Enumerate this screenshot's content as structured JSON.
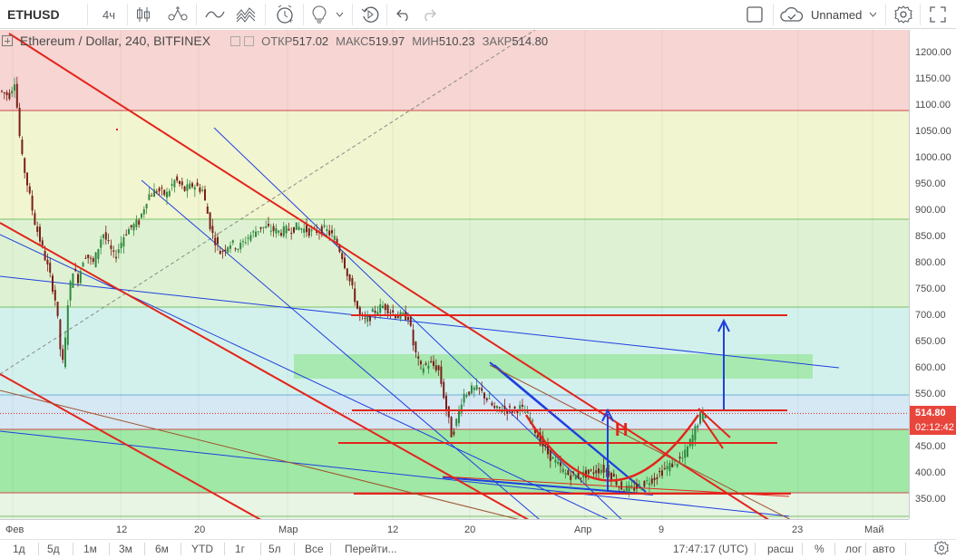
{
  "toolbar": {
    "symbol": "ETHUSD",
    "interval": "4ч",
    "account_name": "Unnamed"
  },
  "legend": {
    "title": "Ethereum / Dollar, 240, BITFINEX",
    "open_label": "ОТКР",
    "open_value": "517.02",
    "high_label": "МАКС",
    "high_value": "519.97",
    "low_label": "МИН",
    "low_value": "510.23",
    "close_label": "ЗАКР",
    "close_value": "514.80"
  },
  "price_axis": {
    "ticks": [
      "1200.00",
      "1150.00",
      "1100.00",
      "1050.00",
      "1000.00",
      "950.00",
      "900.00",
      "850.00",
      "800.00",
      "750.00",
      "700.00",
      "650.00",
      "600.00",
      "550.00",
      "500.00",
      "450.00",
      "400.00",
      "350.00"
    ],
    "last_price": "514.80",
    "countdown": "02:12:42",
    "last_price_color": "#e8453c"
  },
  "time_axis": {
    "labels": [
      "Фев",
      "12",
      "20",
      "Мар",
      "12",
      "20",
      "Апр",
      "9",
      "23",
      "Май"
    ]
  },
  "annotation": {
    "letter": "Н"
  },
  "bottom_bar": {
    "ranges": [
      "1д",
      "5д",
      "1м",
      "3м",
      "6м",
      "YTD",
      "1г",
      "5л",
      "Все"
    ],
    "goto_label": "Перейти...",
    "clock": "17:47:17 (UTC)",
    "scale_items": [
      "расш",
      "%",
      "лог",
      "авто"
    ]
  },
  "colors": {
    "zone_red": "#f6d5d2",
    "zone_yellow": "#f1f5d0",
    "zone_green_light": "#def2d3",
    "zone_teal": "#d3f1ec",
    "zone_green": "#9fe8a6",
    "candle_up": "#2f8a3e",
    "candle_down": "#7a1f17",
    "trend_red": "#e3241b",
    "trend_blue": "#1f3fe0"
  }
}
